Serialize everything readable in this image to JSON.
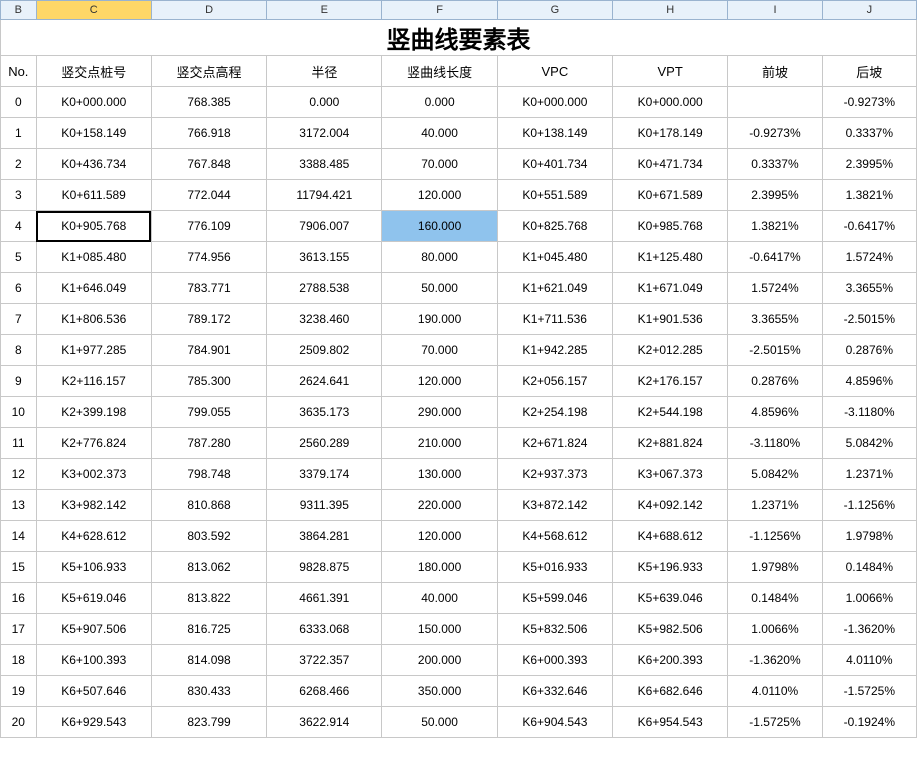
{
  "colHeaders": [
    "B",
    "C",
    "D",
    "E",
    "F",
    "G",
    "H",
    "I",
    "J"
  ],
  "selectedCol": "C",
  "title": "竖曲线要素表",
  "headers": [
    "No.",
    "竖交点桩号",
    "竖交点高程",
    "半径",
    "竖曲线长度",
    "VPC",
    "VPT",
    "前坡",
    "后坡"
  ],
  "selectedRow": 4,
  "selectedDataCol": 1,
  "highlightedDataCol": 4,
  "rows": [
    [
      "0",
      "K0+000.000",
      "768.385",
      "0.000",
      "0.000",
      "K0+000.000",
      "K0+000.000",
      "",
      "-0.9273%"
    ],
    [
      "1",
      "K0+158.149",
      "766.918",
      "3172.004",
      "40.000",
      "K0+138.149",
      "K0+178.149",
      "-0.9273%",
      "0.3337%"
    ],
    [
      "2",
      "K0+436.734",
      "767.848",
      "3388.485",
      "70.000",
      "K0+401.734",
      "K0+471.734",
      "0.3337%",
      "2.3995%"
    ],
    [
      "3",
      "K0+611.589",
      "772.044",
      "11794.421",
      "120.000",
      "K0+551.589",
      "K0+671.589",
      "2.3995%",
      "1.3821%"
    ],
    [
      "4",
      "K0+905.768",
      "776.109",
      "7906.007",
      "160.000",
      "K0+825.768",
      "K0+985.768",
      "1.3821%",
      "-0.6417%"
    ],
    [
      "5",
      "K1+085.480",
      "774.956",
      "3613.155",
      "80.000",
      "K1+045.480",
      "K1+125.480",
      "-0.6417%",
      "1.5724%"
    ],
    [
      "6",
      "K1+646.049",
      "783.771",
      "2788.538",
      "50.000",
      "K1+621.049",
      "K1+671.049",
      "1.5724%",
      "3.3655%"
    ],
    [
      "7",
      "K1+806.536",
      "789.172",
      "3238.460",
      "190.000",
      "K1+711.536",
      "K1+901.536",
      "3.3655%",
      "-2.5015%"
    ],
    [
      "8",
      "K1+977.285",
      "784.901",
      "2509.802",
      "70.000",
      "K1+942.285",
      "K2+012.285",
      "-2.5015%",
      "0.2876%"
    ],
    [
      "9",
      "K2+116.157",
      "785.300",
      "2624.641",
      "120.000",
      "K2+056.157",
      "K2+176.157",
      "0.2876%",
      "4.8596%"
    ],
    [
      "10",
      "K2+399.198",
      "799.055",
      "3635.173",
      "290.000",
      "K2+254.198",
      "K2+544.198",
      "4.8596%",
      "-3.1180%"
    ],
    [
      "11",
      "K2+776.824",
      "787.280",
      "2560.289",
      "210.000",
      "K2+671.824",
      "K2+881.824",
      "-3.1180%",
      "5.0842%"
    ],
    [
      "12",
      "K3+002.373",
      "798.748",
      "3379.174",
      "130.000",
      "K2+937.373",
      "K3+067.373",
      "5.0842%",
      "1.2371%"
    ],
    [
      "13",
      "K3+982.142",
      "810.868",
      "9311.395",
      "220.000",
      "K3+872.142",
      "K4+092.142",
      "1.2371%",
      "-1.1256%"
    ],
    [
      "14",
      "K4+628.612",
      "803.592",
      "3864.281",
      "120.000",
      "K4+568.612",
      "K4+688.612",
      "-1.1256%",
      "1.9798%"
    ],
    [
      "15",
      "K5+106.933",
      "813.062",
      "9828.875",
      "180.000",
      "K5+016.933",
      "K5+196.933",
      "1.9798%",
      "0.1484%"
    ],
    [
      "16",
      "K5+619.046",
      "813.822",
      "4661.391",
      "40.000",
      "K5+599.046",
      "K5+639.046",
      "0.1484%",
      "1.0066%"
    ],
    [
      "17",
      "K5+907.506",
      "816.725",
      "6333.068",
      "150.000",
      "K5+832.506",
      "K5+982.506",
      "1.0066%",
      "-1.3620%"
    ],
    [
      "18",
      "K6+100.393",
      "814.098",
      "3722.357",
      "200.000",
      "K6+000.393",
      "K6+200.393",
      "-1.3620%",
      "4.0110%"
    ],
    [
      "19",
      "K6+507.646",
      "830.433",
      "6268.466",
      "350.000",
      "K6+332.646",
      "K6+682.646",
      "4.0110%",
      "-1.5725%"
    ],
    [
      "20",
      "K6+929.543",
      "823.799",
      "3622.914",
      "50.000",
      "K6+904.543",
      "K6+954.543",
      "-1.5725%",
      "-0.1924%"
    ]
  ],
  "style": {
    "colHeaderBg": "#e8f1fa",
    "colHeaderBorder": "#9ab3cf",
    "colHeaderSelBg": "#ffd767",
    "cellBorder": "#c8c8c8",
    "cellBg": "#ffffff",
    "highlightBg": "#8fc3ed",
    "titleFontSize": 24,
    "cellFontSize": 12,
    "headerFontSize": 13,
    "colWidths": {
      "B": 34,
      "C": 110,
      "D": 110,
      "E": 110,
      "F": 110,
      "G": 110,
      "H": 110,
      "I": 90,
      "J": 90
    }
  }
}
